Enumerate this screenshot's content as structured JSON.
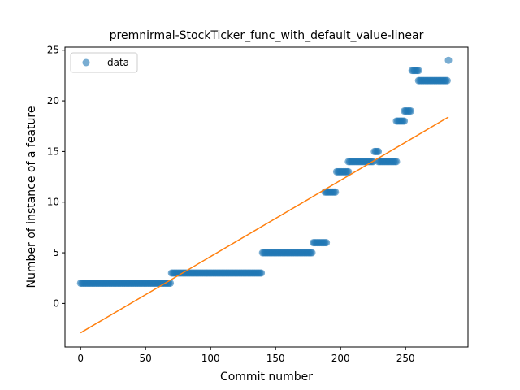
{
  "chart_data": {
    "type": "scatter",
    "title": "premnirmal-StockTicker_func_with_default_value-linear",
    "xlabel": "Commit number",
    "ylabel": "Number of instance of a feature",
    "xlim": [
      -12,
      298
    ],
    "ylim": [
      -4.3,
      25.3
    ],
    "xticks": [
      0,
      50,
      100,
      150,
      200,
      250
    ],
    "yticks": [
      0,
      5,
      10,
      15,
      20,
      25
    ],
    "grid": false,
    "legend": {
      "position": "top-left",
      "entries": [
        "data"
      ]
    },
    "colors": {
      "data": "#1f77b4",
      "fit": "#ff7f0e"
    },
    "series": [
      {
        "name": "data",
        "kind": "points",
        "runs": [
          {
            "x_start": 0,
            "x_end": 69,
            "y": 2
          },
          {
            "x_start": 70,
            "x_end": 139,
            "y": 3
          },
          {
            "x_start": 140,
            "x_end": 178,
            "y": 5
          },
          {
            "x_start": 179,
            "x_end": 189,
            "y": 6
          },
          {
            "x_start": 188,
            "x_end": 196,
            "y": 11
          },
          {
            "x_start": 197,
            "x_end": 206,
            "y": 13
          },
          {
            "x_start": 206,
            "x_end": 225,
            "y": 14
          },
          {
            "x_start": 226,
            "x_end": 229,
            "y": 15
          },
          {
            "x_start": 229,
            "x_end": 243,
            "y": 14
          },
          {
            "x_start": 243,
            "x_end": 249,
            "y": 18
          },
          {
            "x_start": 249,
            "x_end": 254,
            "y": 19
          },
          {
            "x_start": 255,
            "x_end": 260,
            "y": 23
          },
          {
            "x_start": 260,
            "x_end": 282,
            "y": 22
          },
          {
            "x_start": 283,
            "x_end": 283,
            "y": 24
          }
        ]
      },
      {
        "kind": "line",
        "x": [
          0,
          283
        ],
        "y": [
          -2.9,
          18.4
        ]
      }
    ]
  }
}
